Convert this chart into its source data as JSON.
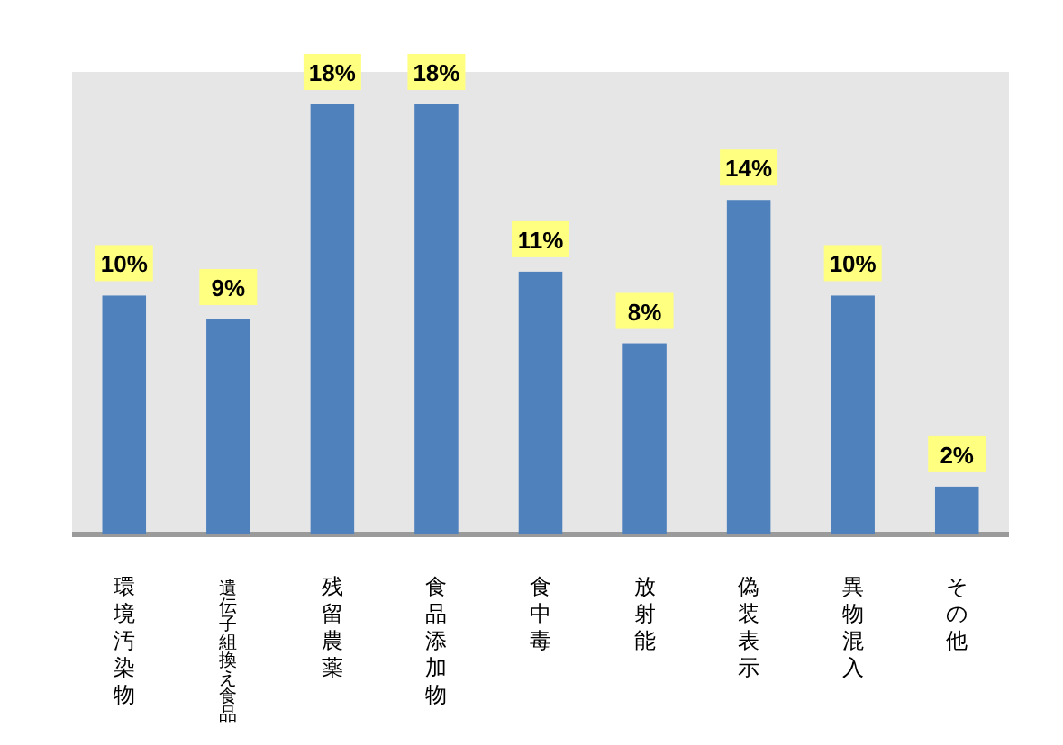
{
  "chart_data": {
    "type": "bar",
    "categories": [
      "環境汚染物",
      "遺伝子組換え食品",
      "残留農薬",
      "食品添加物",
      "食中毒",
      "放射能",
      "偽装表示",
      "異物混入",
      "その他"
    ],
    "values": [
      10,
      9,
      18,
      18,
      11,
      8,
      14,
      10,
      2
    ],
    "value_labels": [
      "10%",
      "9%",
      "18%",
      "18%",
      "11%",
      "8%",
      "14%",
      "10%",
      "2%"
    ],
    "color": "#4f81bd"
  }
}
